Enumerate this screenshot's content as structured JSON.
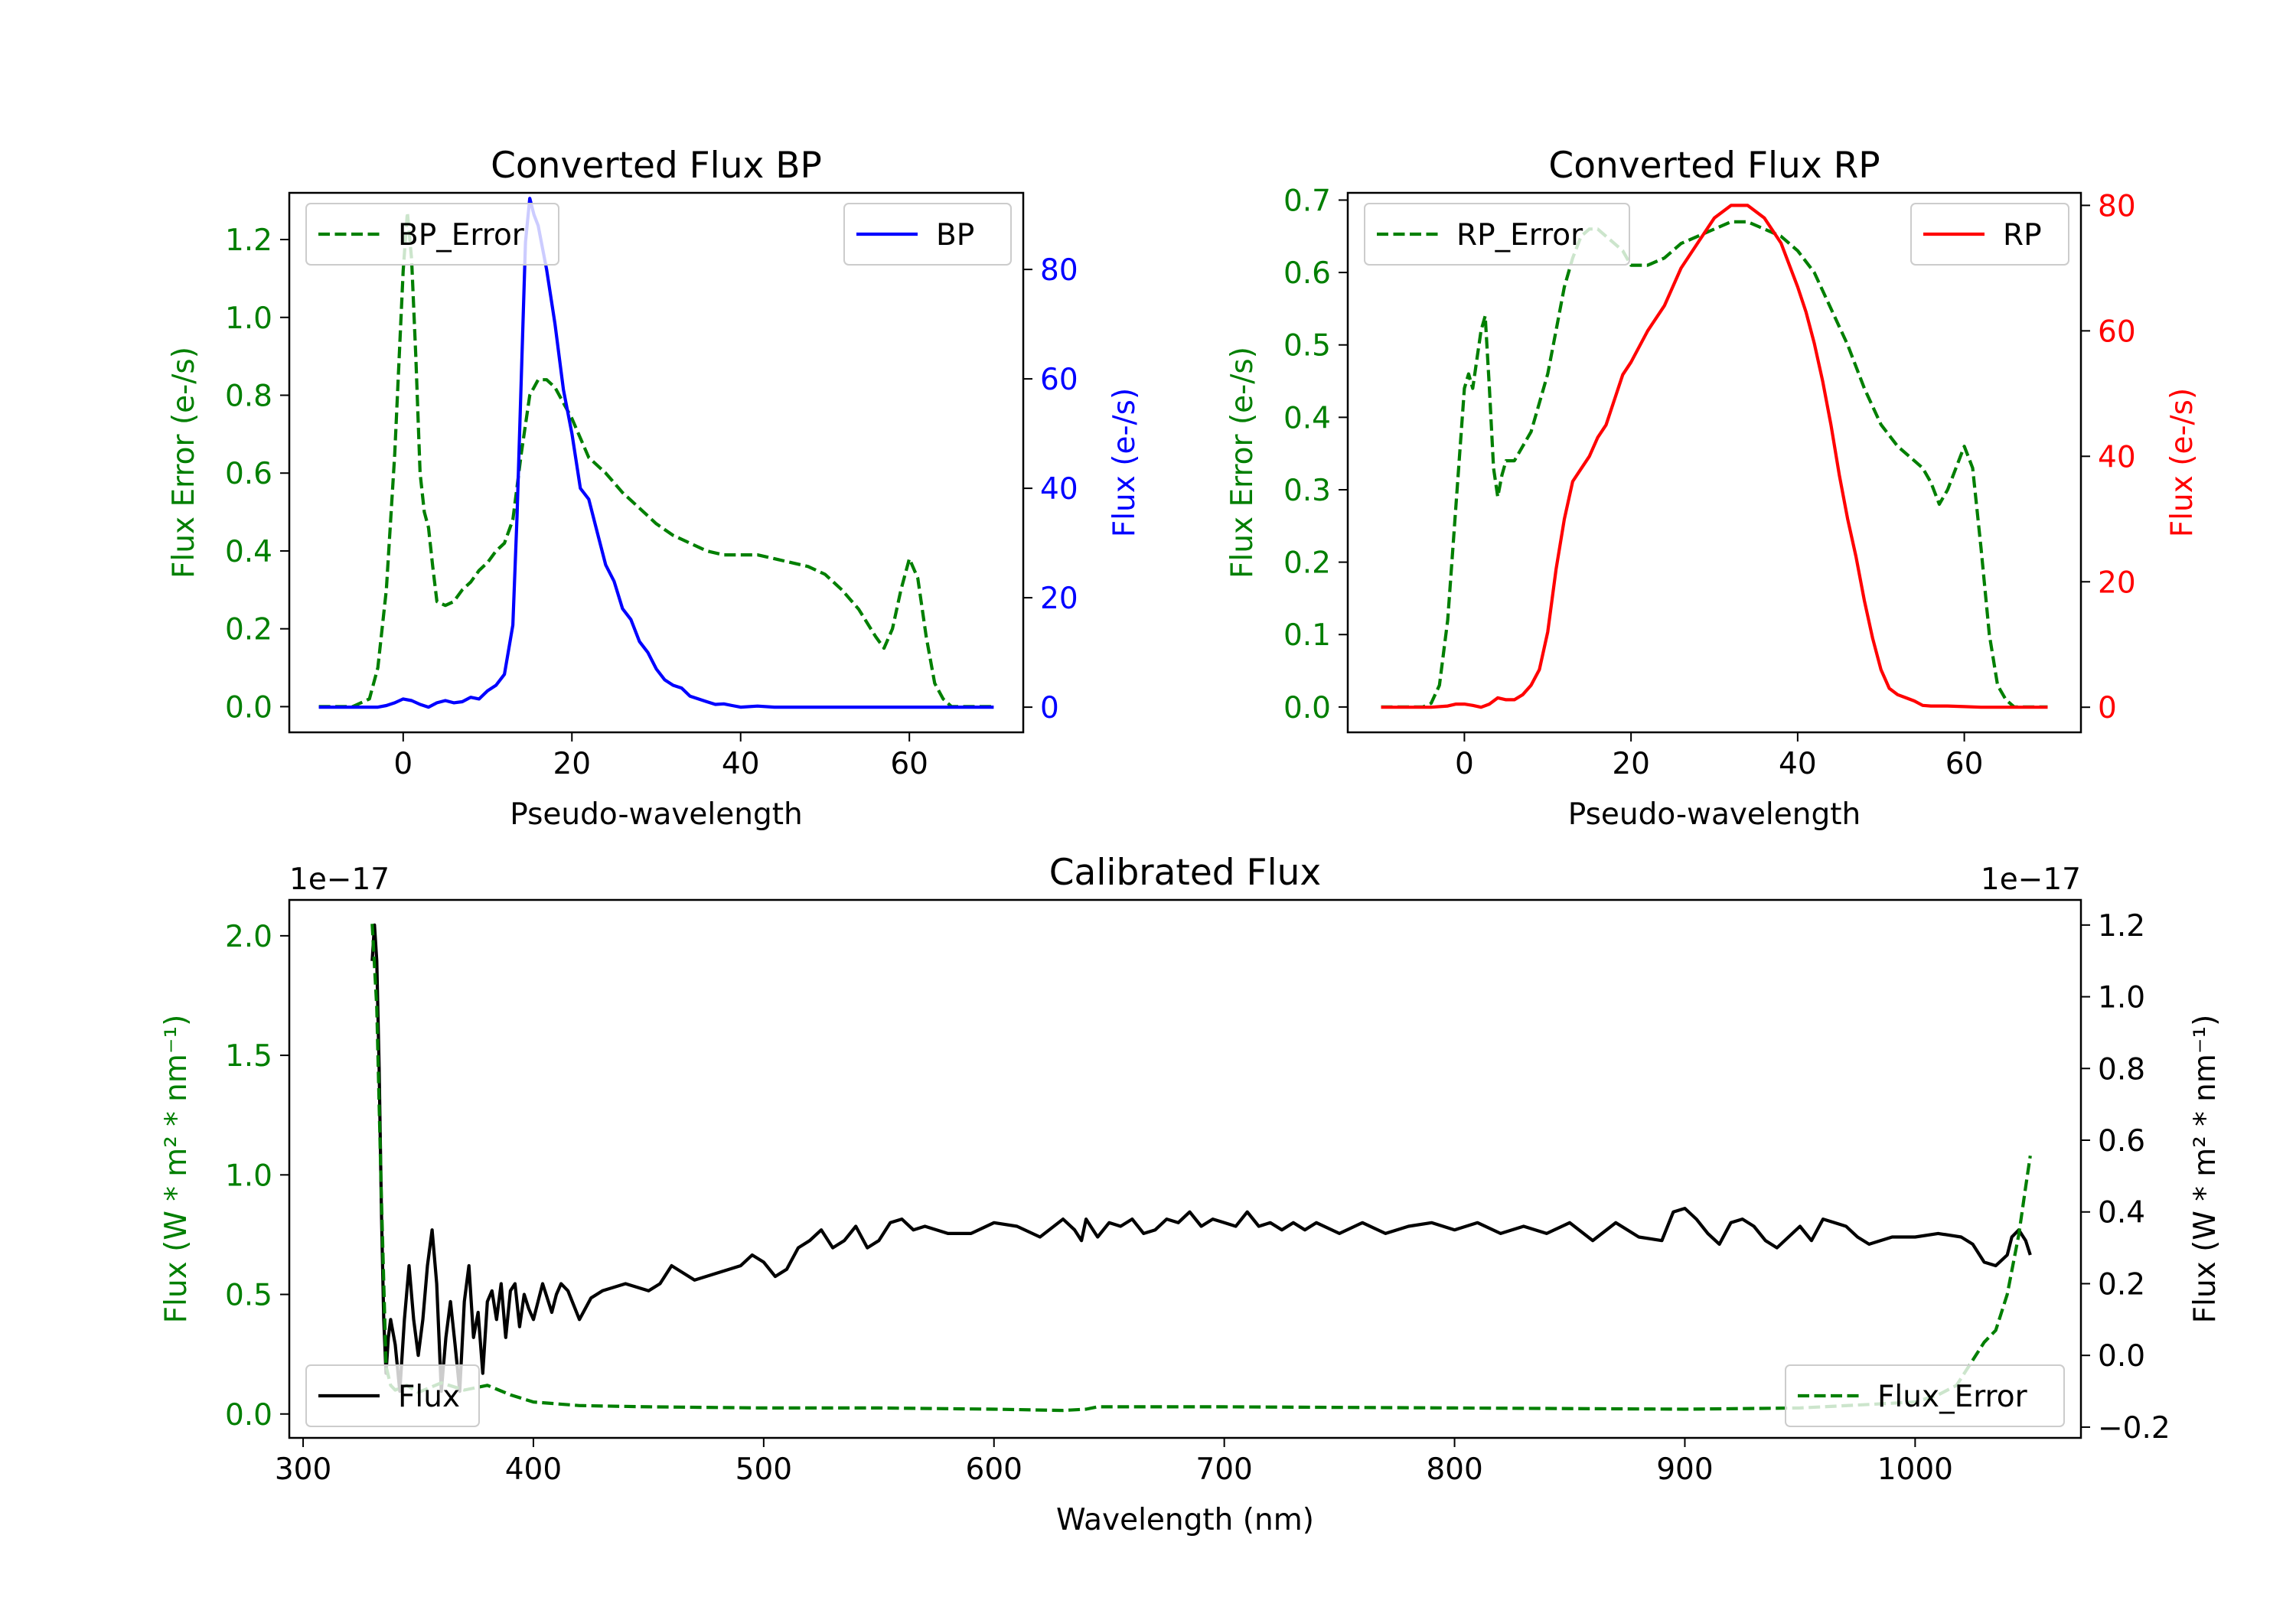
{
  "colors": {
    "green": "#007f00",
    "blue": "#0000ff",
    "red": "#ff0000",
    "black": "#000000"
  },
  "chart_data": [
    {
      "type": "line",
      "title": "Converted Flux BP",
      "xlabel": "Pseudo-wavelength",
      "ylabel_left": "Flux Error (e-/s)",
      "ylabel_right": "Flux (e-/s)",
      "xlim": [
        -13.5,
        73.5
      ],
      "ylim_left": [
        -0.066,
        1.32
      ],
      "ylim_right": [
        -4.6,
        94
      ],
      "xticks": [
        "0",
        "20",
        "40",
        "60"
      ],
      "xtick_values": [
        0,
        20,
        40,
        60
      ],
      "yticks_left": [
        "0.0",
        "0.2",
        "0.4",
        "0.6",
        "0.8",
        "1.0",
        "1.2"
      ],
      "ytick_values_left": [
        0,
        0.2,
        0.4,
        0.6,
        0.8,
        1.0,
        1.2
      ],
      "yticks_right": [
        "0",
        "20",
        "40",
        "60",
        "80"
      ],
      "ytick_values_right": [
        0,
        20,
        40,
        60,
        80
      ],
      "series": [
        {
          "name": "BP_Error",
          "axis": "left",
          "style": "dashed",
          "color": "#007f00",
          "x": [
            -10,
            -6,
            -4,
            -3,
            -2,
            -1,
            0,
            0.5,
            1,
            1.5,
            2,
            2.5,
            3,
            3.5,
            4,
            5,
            6,
            7,
            8,
            9,
            10,
            11,
            12,
            13,
            14,
            15,
            16,
            17,
            18,
            20,
            22,
            24,
            26,
            28,
            30,
            32,
            34,
            36,
            38,
            40,
            42,
            44,
            46,
            48,
            50,
            52,
            54,
            56,
            57,
            58,
            59,
            60,
            61,
            62,
            63,
            64,
            65,
            70
          ],
          "y": [
            0,
            0,
            0.02,
            0.1,
            0.3,
            0.65,
            1.12,
            1.27,
            1.15,
            0.9,
            0.6,
            0.5,
            0.46,
            0.36,
            0.27,
            0.26,
            0.27,
            0.3,
            0.32,
            0.35,
            0.37,
            0.4,
            0.42,
            0.48,
            0.65,
            0.8,
            0.84,
            0.84,
            0.82,
            0.74,
            0.64,
            0.6,
            0.55,
            0.51,
            0.47,
            0.44,
            0.42,
            0.4,
            0.39,
            0.39,
            0.39,
            0.38,
            0.37,
            0.36,
            0.34,
            0.3,
            0.25,
            0.18,
            0.15,
            0.2,
            0.3,
            0.38,
            0.33,
            0.18,
            0.06,
            0.02,
            0,
            0
          ]
        },
        {
          "name": "BP",
          "axis": "right",
          "style": "solid",
          "color": "#0000ff",
          "x": [
            -10,
            -4,
            -3,
            -2,
            -1,
            0,
            1,
            2,
            3,
            4,
            5,
            6,
            7,
            8,
            9,
            10,
            11,
            12,
            13,
            13.5,
            14,
            14.5,
            15,
            15.5,
            16,
            17,
            18,
            19,
            20,
            21,
            22,
            23,
            24,
            25,
            26,
            27,
            28,
            29,
            30,
            31,
            32,
            33,
            34,
            35,
            36,
            37,
            38,
            39,
            40,
            42,
            44,
            46,
            48,
            50,
            55,
            60,
            65,
            70
          ],
          "y": [
            0,
            0,
            0,
            0.3,
            0.8,
            1.5,
            1.2,
            0.5,
            0,
            0.8,
            1.2,
            0.8,
            1,
            1.8,
            1.5,
            3,
            4,
            6,
            15,
            35,
            60,
            85,
            93,
            90,
            88,
            80,
            70,
            58,
            50,
            40,
            38,
            32,
            26,
            23,
            18,
            16,
            12,
            10,
            7,
            5,
            4,
            3.5,
            2,
            1.5,
            1,
            0.5,
            0.6,
            0.3,
            0,
            0.2,
            0,
            0,
            0,
            0,
            0,
            0,
            0,
            0
          ]
        }
      ]
    },
    {
      "type": "line",
      "title": "Converted Flux RP",
      "xlabel": "Pseudo-wavelength",
      "ylabel_left": "Flux Error (e-/s)",
      "ylabel_right": "Flux (e-/s)",
      "xlim": [
        -14,
        74
      ],
      "ylim_left": [
        -0.035,
        0.71
      ],
      "ylim_right": [
        -4,
        82
      ],
      "xticks": [
        "0",
        "20",
        "40",
        "60"
      ],
      "xtick_values": [
        0,
        20,
        40,
        60
      ],
      "yticks_left": [
        "0.0",
        "0.1",
        "0.2",
        "0.3",
        "0.4",
        "0.5",
        "0.6",
        "0.7"
      ],
      "ytick_values_left": [
        0,
        0.1,
        0.2,
        0.3,
        0.4,
        0.5,
        0.6,
        0.7
      ],
      "yticks_right": [
        "0",
        "20",
        "40",
        "60",
        "80"
      ],
      "ytick_values_right": [
        0,
        20,
        40,
        60,
        80
      ],
      "series": [
        {
          "name": "RP_Error",
          "axis": "left",
          "style": "dashed",
          "color": "#007f00",
          "x": [
            -10,
            -5,
            -4,
            -3,
            -2,
            -1,
            0,
            0.5,
            1,
            1.5,
            2,
            2.5,
            3,
            3.5,
            4,
            4.5,
            5,
            6,
            7,
            8,
            9,
            10,
            11,
            12,
            13,
            14,
            15,
            16,
            17,
            18,
            19,
            20,
            22,
            24,
            26,
            28,
            30,
            32,
            34,
            36,
            38,
            40,
            42,
            44,
            46,
            48,
            50,
            52,
            54,
            55,
            56,
            57,
            58,
            59,
            60,
            61,
            62,
            63,
            64,
            65,
            66,
            70
          ],
          "y": [
            0,
            0,
            0.005,
            0.03,
            0.12,
            0.28,
            0.44,
            0.46,
            0.44,
            0.48,
            0.52,
            0.54,
            0.44,
            0.33,
            0.29,
            0.32,
            0.34,
            0.34,
            0.36,
            0.38,
            0.42,
            0.46,
            0.52,
            0.58,
            0.62,
            0.65,
            0.66,
            0.66,
            0.65,
            0.64,
            0.63,
            0.61,
            0.61,
            0.62,
            0.64,
            0.65,
            0.66,
            0.67,
            0.67,
            0.66,
            0.65,
            0.63,
            0.6,
            0.55,
            0.5,
            0.44,
            0.39,
            0.36,
            0.34,
            0.33,
            0.31,
            0.28,
            0.3,
            0.33,
            0.36,
            0.33,
            0.22,
            0.1,
            0.03,
            0.01,
            0,
            0
          ]
        },
        {
          "name": "RP",
          "axis": "right",
          "style": "solid",
          "color": "#ff0000",
          "x": [
            -10,
            -4,
            -2,
            -1,
            0,
            1,
            2,
            3,
            4,
            5,
            6,
            7,
            8,
            9,
            10,
            11,
            12,
            13,
            14,
            15,
            16,
            17,
            18,
            19,
            20,
            22,
            24,
            26,
            28,
            30,
            32,
            34,
            36,
            38,
            40,
            41,
            42,
            43,
            44,
            45,
            46,
            47,
            48,
            49,
            50,
            51,
            52,
            53,
            54,
            55,
            56,
            58,
            60,
            62,
            65,
            70
          ],
          "y": [
            0,
            0,
            0.2,
            0.5,
            0.5,
            0.3,
            0,
            0.5,
            1.5,
            1.2,
            1.2,
            2,
            3.5,
            6,
            12,
            22,
            30,
            36,
            38,
            40,
            43,
            45,
            49,
            53,
            55,
            60,
            64,
            70,
            74,
            78,
            80,
            80,
            78,
            74,
            67,
            63,
            58,
            52,
            45,
            37,
            30,
            24,
            17,
            11,
            6,
            3,
            2,
            1.5,
            1,
            0.3,
            0.2,
            0.2,
            0.1,
            0,
            0,
            0
          ]
        }
      ]
    },
    {
      "type": "line",
      "title": "Calibrated Flux",
      "xlabel": "Wavelength (nm)",
      "ylabel_left": "Flux (W * m² * nm⁻¹)",
      "ylabel_right": "Flux (W * m² * nm⁻¹)",
      "offset_left": "1e−17",
      "offset_right": "1e−17",
      "xlim": [
        294,
        1072
      ],
      "ylim_left": [
        -0.1,
        2.15
      ],
      "ylim_right": [
        -0.23,
        1.27
      ],
      "xticks": [
        "300",
        "400",
        "500",
        "600",
        "700",
        "800",
        "900",
        "1000"
      ],
      "xtick_values": [
        300,
        400,
        500,
        600,
        700,
        800,
        900,
        1000
      ],
      "yticks_left": [
        "0.0",
        "0.5",
        "1.0",
        "1.5",
        "2.0"
      ],
      "ytick_values_left": [
        0,
        0.5,
        1.0,
        1.5,
        2.0
      ],
      "yticks_right": [
        "−0.2",
        "0.0",
        "0.2",
        "0.4",
        "0.6",
        "0.8",
        "1.0",
        "1.2"
      ],
      "ytick_values_right": [
        -0.2,
        0,
        0.2,
        0.4,
        0.6,
        0.8,
        1.0,
        1.2
      ],
      "series": [
        {
          "name": "Flux_Error",
          "axis": "left",
          "style": "dashed",
          "color": "#007f00",
          "x": [
            330,
            332,
            334,
            336,
            338,
            340,
            345,
            350,
            360,
            370,
            380,
            385,
            390,
            400,
            420,
            450,
            500,
            550,
            600,
            630,
            640,
            645,
            660,
            700,
            800,
            900,
            950,
            980,
            1000,
            1010,
            1018,
            1022,
            1026,
            1030,
            1035,
            1040,
            1045,
            1048,
            1050
          ],
          "y": [
            2.05,
            1.7,
            0.9,
            0.2,
            0.12,
            0.1,
            0.12,
            0.09,
            0.13,
            0.1,
            0.12,
            0.1,
            0.08,
            0.05,
            0.035,
            0.03,
            0.025,
            0.025,
            0.02,
            0.015,
            0.02,
            0.03,
            0.03,
            0.03,
            0.025,
            0.02,
            0.025,
            0.04,
            0.05,
            0.08,
            0.12,
            0.18,
            0.24,
            0.3,
            0.35,
            0.5,
            0.75,
            0.95,
            1.08
          ]
        },
        {
          "name": "Flux",
          "axis": "right",
          "style": "solid",
          "color": "#000000",
          "x": [
            330,
            331,
            332,
            333,
            334,
            335,
            336,
            337,
            338,
            340,
            342,
            344,
            346,
            348,
            350,
            352,
            354,
            356,
            358,
            360,
            362,
            364,
            366,
            368,
            370,
            372,
            374,
            376,
            378,
            380,
            382,
            384,
            386,
            388,
            390,
            392,
            394,
            396,
            398,
            400,
            402,
            404,
            406,
            408,
            410,
            412,
            415,
            420,
            425,
            430,
            440,
            450,
            455,
            460,
            465,
            470,
            480,
            490,
            495,
            500,
            505,
            510,
            515,
            520,
            525,
            530,
            535,
            540,
            545,
            550,
            555,
            560,
            565,
            570,
            580,
            590,
            600,
            610,
            620,
            630,
            635,
            638,
            640,
            642,
            645,
            650,
            655,
            660,
            665,
            670,
            675,
            680,
            685,
            690,
            695,
            700,
            705,
            710,
            715,
            720,
            725,
            730,
            735,
            740,
            750,
            760,
            770,
            780,
            790,
            800,
            810,
            820,
            830,
            840,
            850,
            860,
            870,
            880,
            890,
            895,
            900,
            905,
            910,
            915,
            920,
            925,
            930,
            935,
            940,
            945,
            950,
            955,
            960,
            965,
            970,
            975,
            980,
            990,
            1000,
            1010,
            1020,
            1025,
            1030,
            1035,
            1040,
            1042,
            1045,
            1048,
            1050
          ],
          "y": [
            1.1,
            1.2,
            1.1,
            0.8,
            0.4,
            0.1,
            -0.05,
            0.05,
            0.1,
            0.03,
            -0.1,
            0.1,
            0.25,
            0.1,
            0.0,
            0.1,
            0.25,
            0.35,
            0.2,
            -0.1,
            0.05,
            0.15,
            0.03,
            -0.1,
            0.15,
            0.25,
            0.05,
            0.12,
            -0.05,
            0.15,
            0.18,
            0.1,
            0.2,
            0.05,
            0.18,
            0.2,
            0.08,
            0.17,
            0.13,
            0.1,
            0.15,
            0.2,
            0.16,
            0.12,
            0.17,
            0.2,
            0.18,
            0.1,
            0.16,
            0.18,
            0.2,
            0.18,
            0.2,
            0.25,
            0.23,
            0.21,
            0.23,
            0.25,
            0.28,
            0.26,
            0.22,
            0.24,
            0.3,
            0.32,
            0.35,
            0.3,
            0.32,
            0.36,
            0.3,
            0.32,
            0.37,
            0.38,
            0.35,
            0.36,
            0.34,
            0.34,
            0.37,
            0.36,
            0.33,
            0.38,
            0.35,
            0.32,
            0.38,
            0.36,
            0.33,
            0.37,
            0.36,
            0.38,
            0.34,
            0.35,
            0.38,
            0.37,
            0.4,
            0.36,
            0.38,
            0.37,
            0.36,
            0.4,
            0.36,
            0.37,
            0.35,
            0.37,
            0.35,
            0.37,
            0.34,
            0.37,
            0.34,
            0.36,
            0.37,
            0.35,
            0.37,
            0.34,
            0.36,
            0.34,
            0.37,
            0.32,
            0.37,
            0.33,
            0.32,
            0.4,
            0.41,
            0.38,
            0.34,
            0.31,
            0.37,
            0.38,
            0.36,
            0.32,
            0.3,
            0.33,
            0.36,
            0.32,
            0.38,
            0.37,
            0.36,
            0.33,
            0.31,
            0.33,
            0.33,
            0.34,
            0.33,
            0.31,
            0.26,
            0.25,
            0.28,
            0.33,
            0.35,
            0.32,
            0.28
          ]
        }
      ]
    }
  ],
  "legends": {
    "bp_error": "BP_Error",
    "bp": "BP",
    "rp_error": "RP_Error",
    "rp": "RP",
    "flux": "Flux",
    "flux_error": "Flux_Error"
  }
}
